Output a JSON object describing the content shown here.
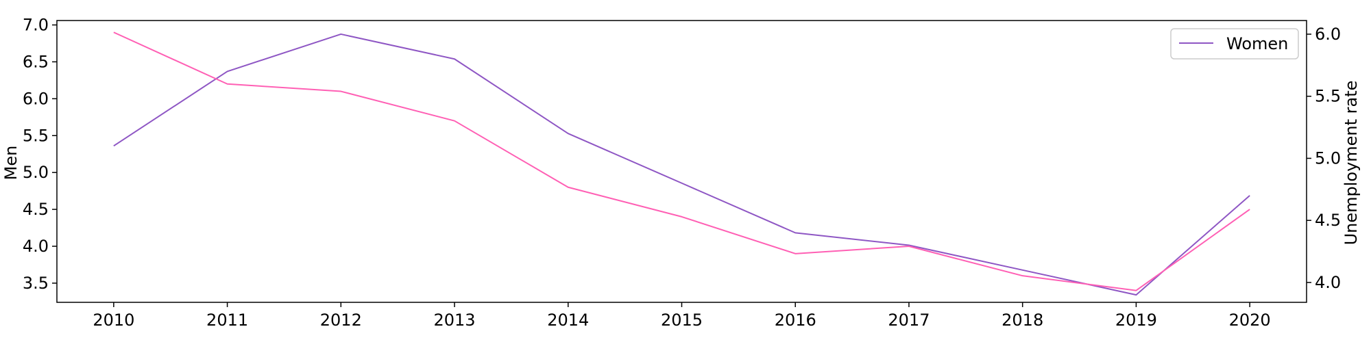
{
  "chart_data": {
    "type": "line",
    "x": [
      2010,
      2011,
      2012,
      2013,
      2014,
      2015,
      2016,
      2017,
      2018,
      2019,
      2020
    ],
    "x_tick_labels": [
      "2010",
      "2011",
      "2012",
      "2013",
      "2014",
      "2015",
      "2016",
      "2017",
      "2018",
      "2019",
      "2020"
    ],
    "series": [
      {
        "name": "Women",
        "axis": "right",
        "color": "#8e56c4",
        "values": [
          5.1,
          5.7,
          6.0,
          5.8,
          5.2,
          4.8,
          4.4,
          4.3,
          4.1,
          3.9,
          4.7
        ]
      },
      {
        "name": "",
        "axis": "left",
        "color": "#ff5fb4",
        "values": [
          6.9,
          6.2,
          6.1,
          5.7,
          4.8,
          4.4,
          3.9,
          4.0,
          3.6,
          3.4,
          4.5
        ]
      }
    ],
    "ylabel_left": "Men",
    "ylabel_right": "Unemployment rate",
    "ylim_left": [
      3.24,
      7.06
    ],
    "ylim_right": [
      3.84,
      6.11
    ],
    "xlim": [
      2009.5,
      2020.5
    ],
    "y_ticks_left": [
      "3.5",
      "4.0",
      "4.5",
      "5.0",
      "5.5",
      "6.0",
      "6.5",
      "7.0"
    ],
    "y_ticks_right": [
      "4.0",
      "4.5",
      "5.0",
      "5.5",
      "6.0"
    ],
    "legend": {
      "placement": "top-right",
      "entries": [
        "Women"
      ]
    },
    "grid": false
  }
}
